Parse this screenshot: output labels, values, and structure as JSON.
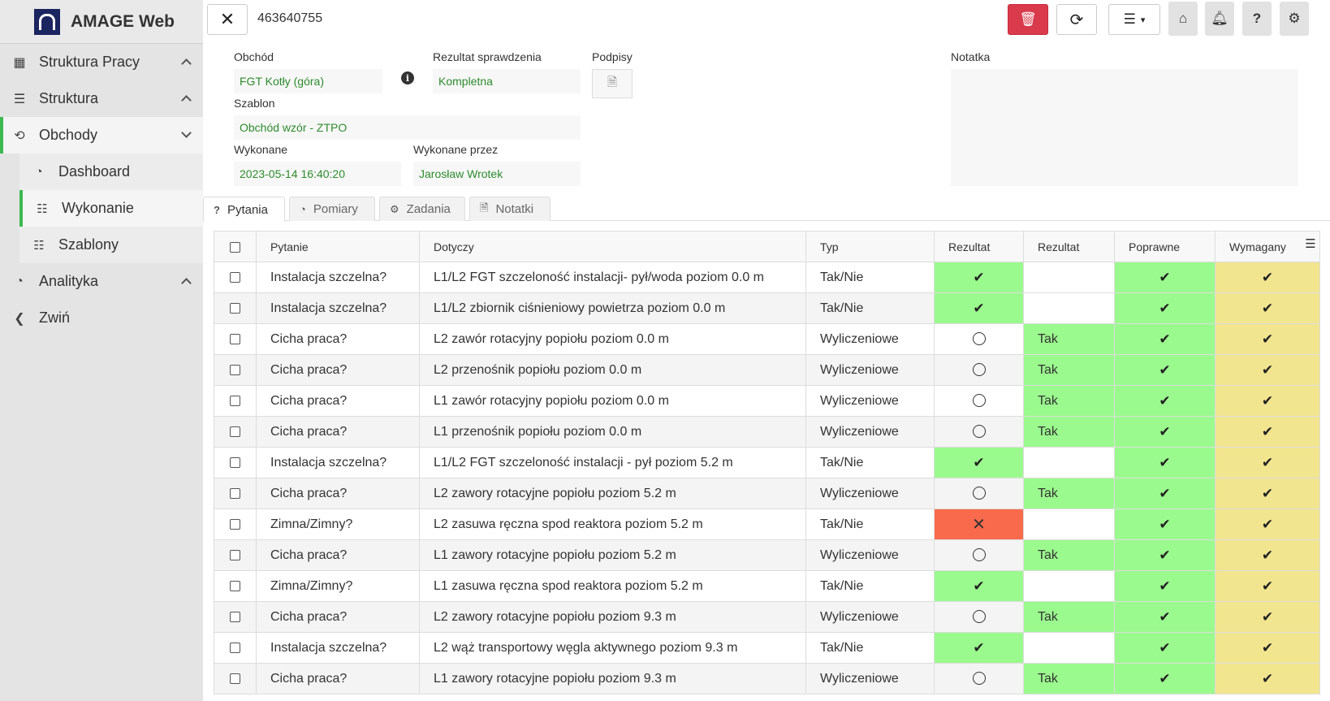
{
  "app": {
    "title": "AMAGE Web"
  },
  "sidebar": {
    "items": [
      {
        "label": "Struktura Pracy"
      },
      {
        "label": "Struktura"
      },
      {
        "label": "Obchody"
      },
      {
        "label": "Analityka"
      },
      {
        "label": "Zwiń"
      }
    ],
    "sub_items": [
      {
        "label": "Dashboard"
      },
      {
        "label": "Wykonanie"
      },
      {
        "label": "Szablony"
      }
    ]
  },
  "header": {
    "id": "463640755"
  },
  "form": {
    "obchod_label": "Obchód",
    "obchod_value": "FGT Kotły (góra)",
    "rezultat_label": "Rezultat sprawdzenia",
    "rezultat_value": "Kompletna",
    "podpisy_label": "Podpisy",
    "notatka_label": "Notatka",
    "szablon_label": "Szablon",
    "szablon_value": "Obchód wzór - ZTPO",
    "wykonane_label": "Wykonane",
    "wykonane_value": "2023-05-14 16:40:20",
    "wykonane_przez_label": "Wykonane przez",
    "wykonane_przez_value": "Jarosław Wrotek"
  },
  "tabs": [
    {
      "label": "Pytania"
    },
    {
      "label": "Pomiary"
    },
    {
      "label": "Zadania"
    },
    {
      "label": "Notatki"
    }
  ],
  "table": {
    "headers": [
      "Pytanie",
      "Dotyczy",
      "Typ",
      "Rezultat",
      "Rezultat",
      "Poprawne",
      "Wymagany"
    ],
    "rows": [
      {
        "pytanie": "Instalacja szczelna?",
        "dotyczy": "L1/L2 FGT szczeloność instalacji- pył/woda poziom 0.0 m",
        "typ": "Tak/Nie",
        "rezultat": "check",
        "rezultat2": "",
        "poprawne": "check",
        "wymagany": "check"
      },
      {
        "pytanie": "Instalacja szczelna?",
        "dotyczy": "L1/L2 zbiornik ciśnieniowy powietrza poziom 0.0 m",
        "typ": "Tak/Nie",
        "rezultat": "check",
        "rezultat2": "",
        "poprawne": "check",
        "wymagany": "check"
      },
      {
        "pytanie": "Cicha praca?",
        "dotyczy": "L2 zawór rotacyjny popiołu poziom 0.0 m",
        "typ": "Wyliczeniowe",
        "rezultat": "circle",
        "rezultat2": "Tak",
        "poprawne": "check",
        "wymagany": "check"
      },
      {
        "pytanie": "Cicha praca?",
        "dotyczy": "L2 przenośnik popiołu poziom 0.0 m",
        "typ": "Wyliczeniowe",
        "rezultat": "circle",
        "rezultat2": "Tak",
        "poprawne": "check",
        "wymagany": "check"
      },
      {
        "pytanie": "Cicha praca?",
        "dotyczy": "L1 zawór rotacyjny popiołu poziom 0.0 m",
        "typ": "Wyliczeniowe",
        "rezultat": "circle",
        "rezultat2": "Tak",
        "poprawne": "check",
        "wymagany": "check"
      },
      {
        "pytanie": "Cicha praca?",
        "dotyczy": "L1 przenośnik popiołu poziom 0.0 m",
        "typ": "Wyliczeniowe",
        "rezultat": "circle",
        "rezultat2": "Tak",
        "poprawne": "check",
        "wymagany": "check"
      },
      {
        "pytanie": "Instalacja szczelna?",
        "dotyczy": "L1/L2 FGT szczeloność instalacji - pył poziom 5.2 m",
        "typ": "Tak/Nie",
        "rezultat": "check",
        "rezultat2": "",
        "poprawne": "check",
        "wymagany": "check"
      },
      {
        "pytanie": "Cicha praca?",
        "dotyczy": "L2 zawory rotacyjne popiołu poziom 5.2 m",
        "typ": "Wyliczeniowe",
        "rezultat": "circle",
        "rezultat2": "Tak",
        "poprawne": "check",
        "wymagany": "check"
      },
      {
        "pytanie": "Zimna/Zimny?",
        "dotyczy": "L2 zasuwa ręczna spod reaktora poziom 5.2 m",
        "typ": "Tak/Nie",
        "rezultat": "cross",
        "rezultat2": "",
        "poprawne": "check",
        "wymagany": "check"
      },
      {
        "pytanie": "Cicha praca?",
        "dotyczy": "L1 zawory rotacyjne popiołu poziom 5.2 m",
        "typ": "Wyliczeniowe",
        "rezultat": "circle",
        "rezultat2": "Tak",
        "poprawne": "check",
        "wymagany": "check"
      },
      {
        "pytanie": "Zimna/Zimny?",
        "dotyczy": "L1 zasuwa ręczna spod reaktora poziom 5.2 m",
        "typ": "Tak/Nie",
        "rezultat": "check",
        "rezultat2": "",
        "poprawne": "check",
        "wymagany": "check"
      },
      {
        "pytanie": "Cicha praca?",
        "dotyczy": "L2 zawory rotacyjne popiołu poziom 9.3 m",
        "typ": "Wyliczeniowe",
        "rezultat": "circle",
        "rezultat2": "Tak",
        "poprawne": "check",
        "wymagany": "check"
      },
      {
        "pytanie": "Instalacja szczelna?",
        "dotyczy": "L2 wąż transportowy węgla aktywnego poziom 9.3 m",
        "typ": "Tak/Nie",
        "rezultat": "check",
        "rezultat2": "",
        "poprawne": "check",
        "wymagany": "check"
      },
      {
        "pytanie": "Cicha praca?",
        "dotyczy": "L1 zawory rotacyjne popiołu poziom 9.3 m",
        "typ": "Wyliczeniowe",
        "rezultat": "circle",
        "rezultat2": "Tak",
        "poprawne": "check",
        "wymagany": "check"
      }
    ]
  },
  "icons": {
    "sidebar": [
      "building-icon",
      "tree-icon",
      "rotate-icon",
      "tachometer-icon",
      "chevron-left-icon"
    ],
    "sub": [
      "tachometer-icon",
      "list-icon",
      "list-icon"
    ]
  },
  "colors": {
    "accent": "#3cb950",
    "danger": "#d93a4c",
    "ok_cell": "#9bfa8e",
    "required_cell": "#f2e58f",
    "fail_cell": "#f96a4c",
    "value_text": "#2e8b2e"
  }
}
